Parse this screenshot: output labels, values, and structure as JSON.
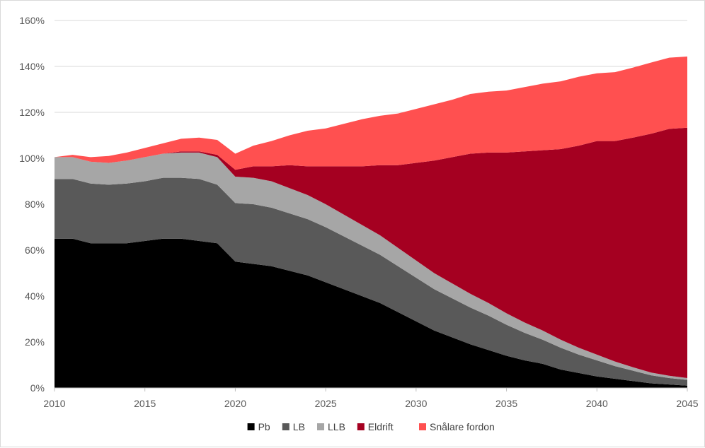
{
  "chart_data": {
    "type": "area",
    "stacked": true,
    "title": "",
    "xlabel": "",
    "ylabel": "",
    "xlim": [
      2010,
      2045
    ],
    "ylim": [
      0,
      160
    ],
    "y_tick_format": "percent",
    "x_ticks": [
      2010,
      2015,
      2020,
      2025,
      2030,
      2035,
      2040,
      2045
    ],
    "y_ticks": [
      0,
      20,
      40,
      60,
      80,
      100,
      120,
      140,
      160
    ],
    "grid": "horizontal",
    "legend_position": "bottom",
    "x": [
      2010,
      2011,
      2012,
      2013,
      2014,
      2015,
      2016,
      2017,
      2018,
      2019,
      2020,
      2021,
      2022,
      2023,
      2024,
      2025,
      2026,
      2027,
      2028,
      2029,
      2030,
      2031,
      2032,
      2033,
      2034,
      2035,
      2036,
      2037,
      2038,
      2039,
      2040,
      2041,
      2042,
      2043,
      2044,
      2045
    ],
    "series": [
      {
        "name": "Pb",
        "color": "#000000",
        "values": [
          65,
          65,
          63,
          63,
          63,
          64,
          65,
          65,
          64,
          63,
          55,
          54,
          53,
          51,
          49,
          46,
          43,
          40,
          37,
          33,
          29,
          25,
          22,
          19,
          16.5,
          14,
          12,
          10.5,
          8,
          6.5,
          5,
          4,
          3,
          2,
          1.5,
          1
        ]
      },
      {
        "name": "LB",
        "color": "#595959",
        "values": [
          26,
          26,
          26,
          25.5,
          26,
          26,
          26.5,
          26.5,
          27,
          25.5,
          25.5,
          26,
          25.5,
          25,
          24.5,
          24,
          23,
          22,
          21,
          20,
          19,
          18,
          17,
          16,
          15,
          13.5,
          12,
          10.5,
          9.5,
          8,
          7,
          5.5,
          4.5,
          3.5,
          2.8,
          2.5
        ]
      },
      {
        "name": "LLB",
        "color": "#a6a6a6",
        "values": [
          9.5,
          9.5,
          9.5,
          9.5,
          10,
          10.5,
          10.5,
          11,
          11.5,
          12,
          11.5,
          11.5,
          11.5,
          11,
          10.5,
          10,
          9.5,
          9,
          8.5,
          8,
          7.5,
          7,
          6.5,
          6,
          5.5,
          5,
          4.5,
          4,
          3.5,
          3,
          2.5,
          2,
          1.5,
          1.2,
          1,
          0.8
        ]
      },
      {
        "name": "Eldrift",
        "color": "#a50021",
        "values": [
          0,
          0,
          0,
          0,
          0,
          0,
          0,
          0.5,
          0.5,
          1,
          3,
          5,
          6.5,
          10,
          12.5,
          16.5,
          21,
          25.5,
          30.5,
          36,
          42.5,
          49,
          55,
          61,
          65.5,
          70,
          74.5,
          78.5,
          83,
          88,
          93,
          96,
          100,
          104,
          107.5,
          109
        ]
      },
      {
        "name": "Snålare fordon",
        "color": "#ff5050",
        "values": [
          0,
          1,
          2,
          3,
          3.5,
          4,
          4.5,
          5.5,
          6,
          6.5,
          7,
          9,
          11,
          13,
          15.5,
          16.5,
          18.5,
          20.5,
          21.5,
          22.5,
          23.5,
          24.5,
          25,
          26,
          26.5,
          27,
          28,
          29,
          29.5,
          30,
          29.5,
          30,
          30.5,
          31,
          31,
          31
        ]
      }
    ]
  }
}
